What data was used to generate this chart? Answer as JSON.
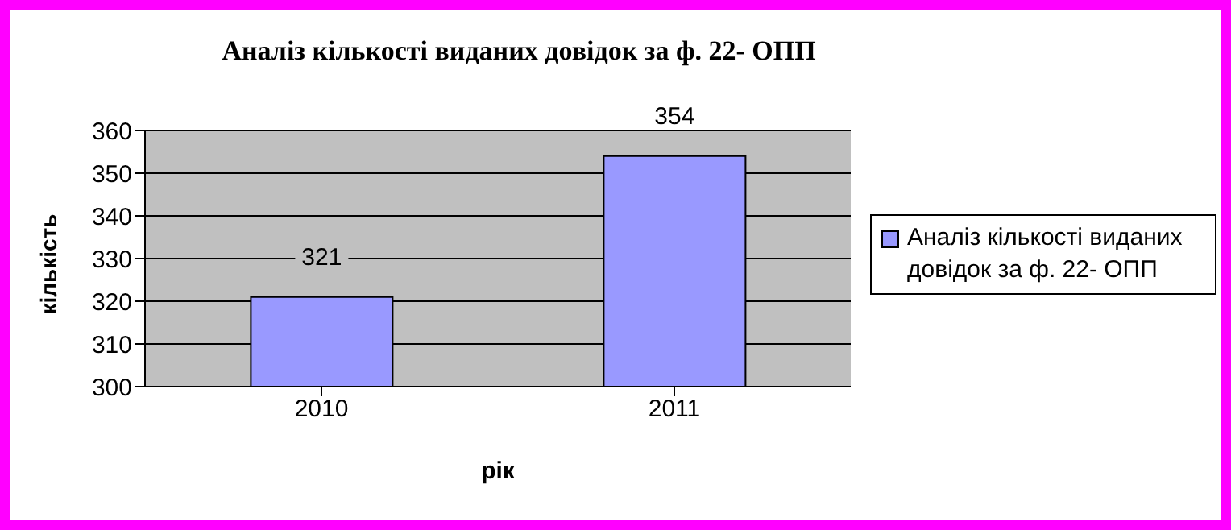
{
  "chart_data": {
    "type": "bar",
    "title": "Аналіз кількості виданих довідок за ф. 22- ОПП",
    "xlabel": "рік",
    "ylabel": "кількість",
    "categories": [
      "2010",
      "2011"
    ],
    "series": [
      {
        "name": "Аналіз кількості виданих довідок за ф. 22- ОПП",
        "color": "#9999ff",
        "values": [
          321,
          354
        ]
      }
    ],
    "ylim": [
      300,
      360
    ],
    "yticks": [
      300,
      310,
      320,
      330,
      340,
      350,
      360
    ],
    "grid": "y",
    "legend": "right",
    "data_labels": true
  }
}
